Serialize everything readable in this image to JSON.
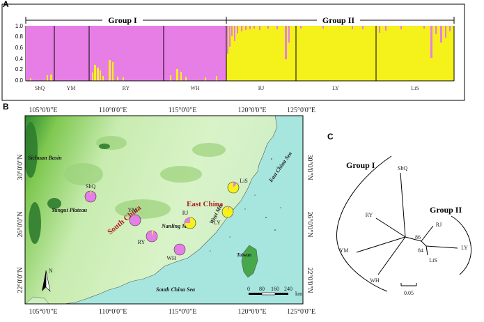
{
  "panels": {
    "a": "A",
    "b": "B",
    "c": "C"
  },
  "structure": {
    "group1_label": "Group I",
    "group2_label": "Group II",
    "y_ticks": [
      "1.0",
      "0.8",
      "0.6",
      "0.4",
      "0.2",
      "0.0"
    ],
    "populations": [
      "ShQ",
      "YM",
      "RY",
      "WH",
      "RJ",
      "LY",
      "LiS"
    ],
    "colors": {
      "cluster1": "#e77ee6",
      "cluster2": "#f4f21a"
    }
  },
  "map": {
    "top_lon": [
      "105°0'0\"E",
      "110°0'0\"E",
      "115°0'0\"E",
      "120°0'0\"E",
      "125°0'0\"E"
    ],
    "bottom_lon": [
      "105°0'0\"E",
      "110°0'0\"E",
      "115°0'0\"E",
      "120°0'0\"E",
      "125°0'0\"E"
    ],
    "lat": [
      "30°0'0\"N",
      "26°0'0\"N",
      "22°0'0\"N"
    ],
    "places": {
      "sichuan": "Sichuan Basin",
      "yungui": "Yungui Plateau",
      "nanling": "Nanling Mts",
      "wuyi": "Wuyi Mts",
      "ecs": "East China Sea",
      "scs": "South China Sea",
      "taiwan": "Taiwan"
    },
    "regions": {
      "south": "South China",
      "east": "East China"
    },
    "pops": {
      "shq": "ShQ",
      "ym": "YM",
      "ry": "RY",
      "wh": "WH",
      "rj": "RJ",
      "ly": "LY",
      "lis": "LiS"
    },
    "scale": {
      "labels": [
        "0",
        "80",
        "160",
        "240"
      ],
      "unit": "km"
    },
    "north": "N"
  },
  "tree": {
    "group1": "Group I",
    "group2": "Group II",
    "tips": {
      "shq": "ShQ",
      "ry": "RY",
      "ym": "YM",
      "wh": "WH",
      "rj": "RJ",
      "ly": "LY",
      "lis": "LiS"
    },
    "bootstrap": [
      "86",
      "84"
    ],
    "scale": "0.05"
  }
}
